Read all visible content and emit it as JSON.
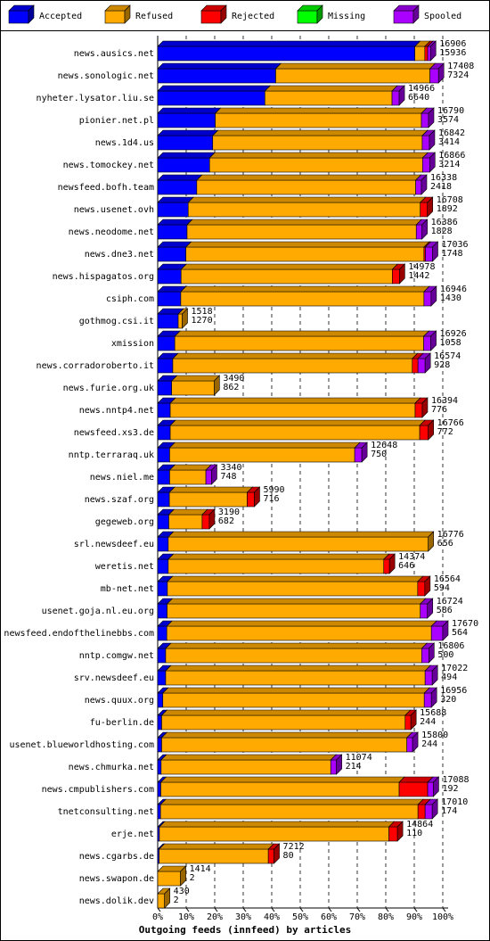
{
  "chart_data": {
    "type": "stacked-bar-3d",
    "categories": [
      "news.ausics.net",
      "news.sonologic.net",
      "nyheter.lysator.liu.se",
      "pionier.net.pl",
      "news.1d4.us",
      "news.tomockey.net",
      "newsfeed.bofh.team",
      "news.usenet.ovh",
      "news.neodome.net",
      "news.dne3.net",
      "news.hispagatos.org",
      "csiph.com",
      "gothmog.csi.it",
      "xmission",
      "news.corradoroberto.it",
      "news.furie.org.uk",
      "news.nntp4.net",
      "newsfeed.xs3.de",
      "nntp.terraraq.uk",
      "news.niel.me",
      "news.szaf.org",
      "gegeweb.org",
      "srl.newsdeef.eu",
      "weretis.net",
      "mb-net.net",
      "usenet.goja.nl.eu.org",
      "newsfeed.endofthelinebbs.com",
      "nntp.comgw.net",
      "srv.newsdeef.eu",
      "news.quux.org",
      "fu-berlin.de",
      "usenet.blueworldhosting.com",
      "news.chmurka.net",
      "news.cmpublishers.com",
      "tnetconsulting.net",
      "erje.net",
      "news.cgarbs.de",
      "news.swapon.de",
      "news.dolik.dev"
    ],
    "series": [
      {
        "name": "Accepted",
        "color": "#0000ff",
        "values": [
          90.2,
          41.4,
          37.6,
          20.2,
          19.3,
          18.2,
          13.7,
          10.7,
          10.3,
          9.9,
          8.2,
          8.1,
          7.2,
          6.0,
          5.3,
          4.9,
          4.4,
          4.4,
          4.2,
          4.2,
          4.1,
          3.9,
          3.7,
          3.7,
          3.4,
          3.3,
          3.2,
          2.8,
          2.8,
          1.8,
          1.4,
          1.4,
          1.2,
          1.1,
          1.0,
          0.6,
          0.5,
          0.0,
          0.0
        ]
      },
      {
        "name": "Refused",
        "color": "#ffaa00",
        "values": [
          3.5,
          54.1,
          44.6,
          72.3,
          73.5,
          74.7,
          76.8,
          81.4,
          80.4,
          83.5,
          74.1,
          85.3,
          1.4,
          87.3,
          84.0,
          14.9,
          85.9,
          87.5,
          64.9,
          12.7,
          27.3,
          11.7,
          91.2,
          75.6,
          87.8,
          88.8,
          92.8,
          89.8,
          91.0,
          91.7,
          85.4,
          86.0,
          59.5,
          83.6,
          90.3,
          80.5,
          38.3,
          8.0,
          2.4
        ]
      },
      {
        "name": "Rejected",
        "color": "#ff0000",
        "values": [
          1,
          0,
          0,
          0,
          0,
          0,
          0,
          2.5,
          0,
          0.5,
          2.5,
          0,
          0,
          0,
          2,
          0,
          2.5,
          3,
          0,
          0,
          2.5,
          2.5,
          0,
          2,
          2.5,
          0,
          0,
          0,
          0,
          0,
          2,
          0,
          0,
          10,
          2.5,
          3,
          2,
          0,
          0
        ]
      },
      {
        "name": "Missing",
        "color": "#00ff00",
        "values": [
          0,
          0,
          0,
          0,
          0,
          0,
          0,
          0,
          0,
          0,
          0,
          0,
          0,
          0,
          0,
          0,
          0,
          0,
          0,
          0,
          0,
          0,
          0,
          0,
          0,
          0,
          0,
          0,
          0,
          0,
          0,
          0,
          0,
          0,
          0,
          0,
          0,
          0,
          0
        ]
      },
      {
        "name": "Spooled",
        "color": "#aa00ff",
        "values": [
          1,
          3,
          2.5,
          2.5,
          2.5,
          2.5,
          2,
          0,
          2,
          2.5,
          0,
          2.5,
          0,
          2.5,
          2.5,
          0,
          0,
          0,
          2.5,
          2,
          0,
          0,
          0,
          0,
          0,
          2.5,
          4,
          2.5,
          2.5,
          2.5,
          0,
          2,
          2,
          2,
          2.5,
          0,
          0,
          0,
          0
        ]
      }
    ],
    "offered": [
      16906,
      17408,
      14966,
      16790,
      16842,
      16866,
      16338,
      16708,
      16386,
      17036,
      14978,
      16946,
      1518,
      16926,
      16574,
      3490,
      16394,
      16766,
      12648,
      3340,
      5990,
      3190,
      16776,
      14374,
      16564,
      16724,
      17670,
      16806,
      17022,
      16956,
      15688,
      15800,
      11074,
      17088,
      17010,
      14864,
      7212,
      1414,
      430
    ],
    "accepted": [
      15936,
      7324,
      6640,
      3574,
      3414,
      3214,
      2418,
      1892,
      1828,
      1748,
      1442,
      1430,
      1270,
      1058,
      928,
      862,
      776,
      772,
      750,
      748,
      716,
      682,
      656,
      646,
      594,
      586,
      564,
      500,
      494,
      320,
      244,
      244,
      214,
      192,
      174,
      110,
      80,
      2,
      2
    ],
    "xlim": [
      0,
      100
    ],
    "xticks": [
      {
        "value": 0,
        "label": "0%"
      },
      {
        "value": 10,
        "label": "10%"
      },
      {
        "value": 20,
        "label": "20%"
      },
      {
        "value": 30,
        "label": "30%"
      },
      {
        "value": 40,
        "label": "40%"
      },
      {
        "value": 50,
        "label": "50%"
      },
      {
        "value": 60,
        "label": "60%"
      },
      {
        "value": 70,
        "label": "70%"
      },
      {
        "value": 80,
        "label": "80%"
      },
      {
        "value": 90,
        "label": "90%"
      },
      {
        "value": 100,
        "label": "100%"
      }
    ],
    "xlabel": "Outgoing feeds (innfeed) by articles",
    "grid": true
  }
}
